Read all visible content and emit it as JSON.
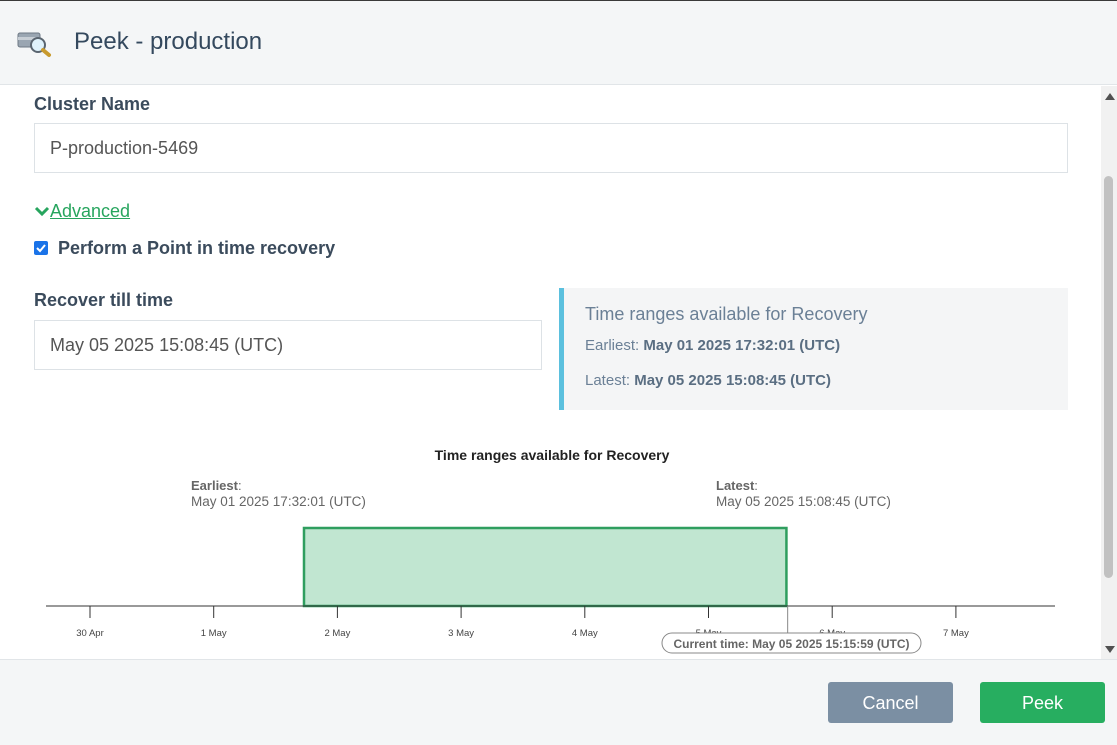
{
  "header": {
    "title": "Peek - production",
    "icon": "search-database-icon"
  },
  "form": {
    "cluster_label": "Cluster Name",
    "cluster_value": "P-production-5469",
    "advanced_label": "Advanced",
    "pitr_label": "Perform a Point in time recovery",
    "pitr_checked": true,
    "recover_label": "Recover till time",
    "recover_value": "May 05 2025 15:08:45 (UTC)"
  },
  "info": {
    "title": "Time ranges available for Recovery",
    "earliest_prefix": "Earliest:",
    "earliest_value": "May 01 2025 17:32:01 (UTC)",
    "latest_prefix": "Latest:",
    "latest_value": "May 05 2025 15:08:45 (UTC)"
  },
  "chart_data": {
    "type": "bar",
    "title": "Time ranges available for Recovery",
    "ticks": [
      "30 Apr",
      "1 May",
      "2 May",
      "3 May",
      "4 May",
      "5 May",
      "6 May",
      "7 May"
    ],
    "range": {
      "start_day": 1.73,
      "end_day": 5.63
    },
    "earliest_label": "Earliest",
    "earliest_value": "May 01 2025 17:32:01 (UTC)",
    "latest_label": "Latest",
    "latest_value": "May 05 2025 15:08:45 (UTC)",
    "current_label": "Current time: May 05 2025 15:15:59 (UTC)",
    "current_day": 5.64,
    "range_color": "#c1e6d1",
    "range_border": "#2f9e5f"
  },
  "footer": {
    "cancel_label": "Cancel",
    "peek_label": "Peek"
  }
}
